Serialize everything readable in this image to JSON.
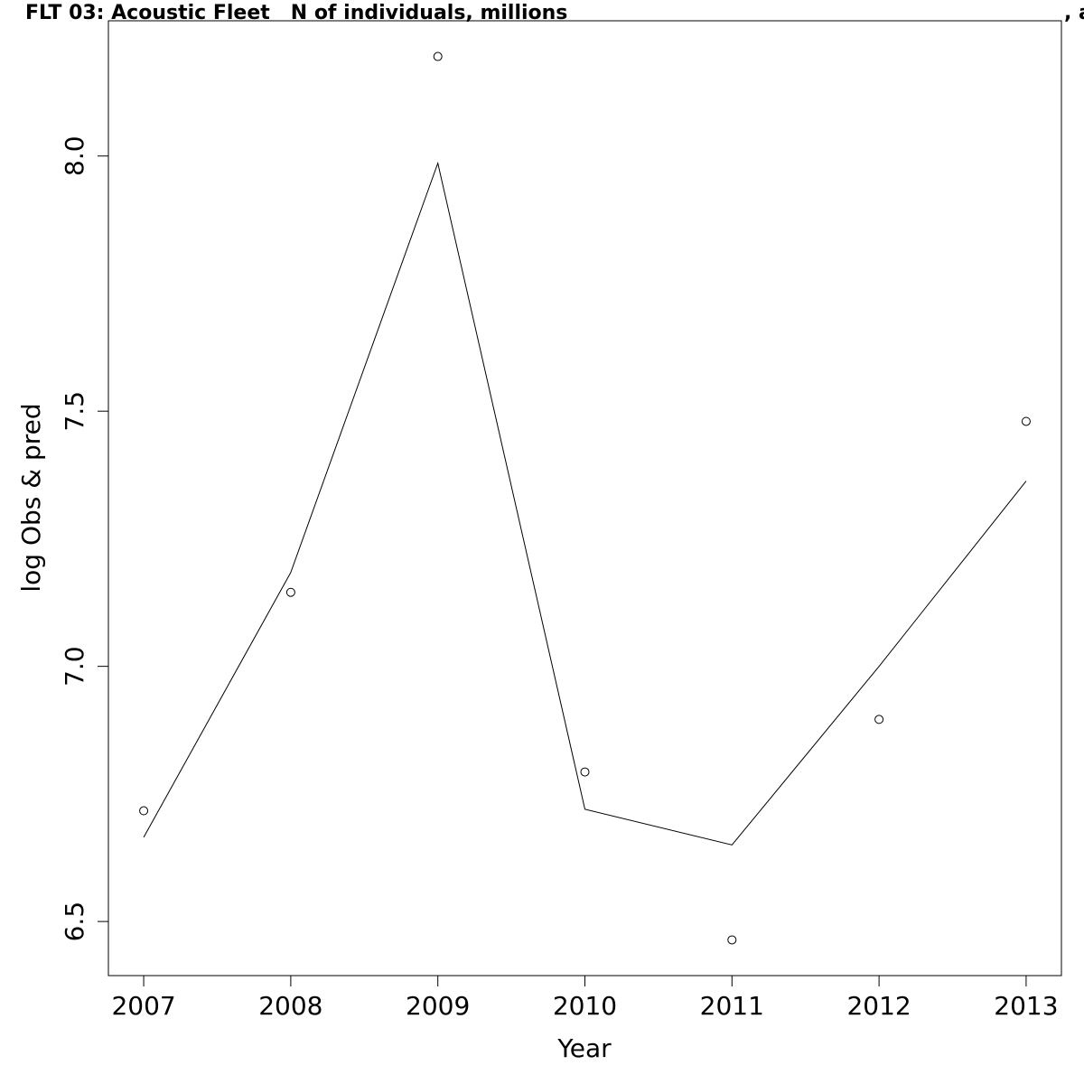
{
  "chart_data": {
    "type": "line",
    "title": "FLT 03: Acoustic Fleet   N of individuals, millions",
    "title_right": ", a",
    "x_label": "Year",
    "y_label": "log Obs & pred",
    "x": [
      2007,
      2008,
      2009,
      2010,
      2011,
      2012,
      2013
    ],
    "series": [
      {
        "mode": "points",
        "color": "#000000",
        "values": [
          6.717,
          7.145,
          8.195,
          6.793,
          6.464,
          6.896,
          7.48
        ]
      },
      {
        "mode": "line",
        "color": "#000000",
        "values": [
          6.665,
          7.184,
          7.986,
          6.72,
          6.65,
          7.0,
          7.363
        ]
      }
    ],
    "xlim": [
      2006.76,
      2013.24
    ],
    "xticks": [
      2007,
      2008,
      2009,
      2010,
      2011,
      2012,
      2013
    ],
    "ylim": [
      6.394,
      8.265
    ],
    "yticks": [
      {
        "value": 6.5,
        "label": "6.5"
      },
      {
        "value": 7,
        "label": "7.0"
      },
      {
        "value": 7.5,
        "label": "7.5"
      },
      {
        "value": 8,
        "label": "8.0"
      }
    ]
  }
}
